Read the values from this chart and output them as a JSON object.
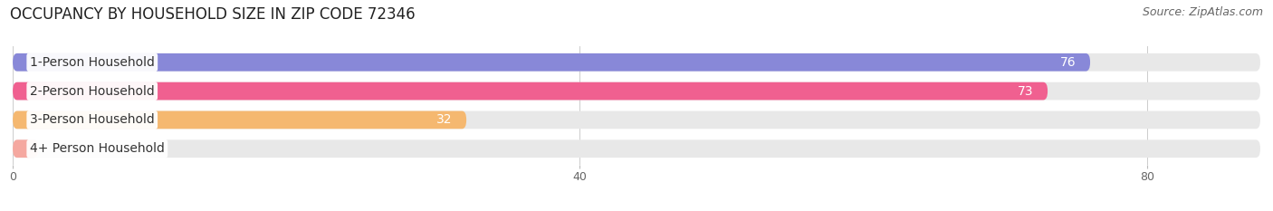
{
  "title": "OCCUPANCY BY HOUSEHOLD SIZE IN ZIP CODE 72346",
  "source": "Source: ZipAtlas.com",
  "categories": [
    "1-Person Household",
    "2-Person Household",
    "3-Person Household",
    "4+ Person Household"
  ],
  "values": [
    76,
    73,
    32,
    0
  ],
  "bar_colors": [
    "#8888d8",
    "#f06090",
    "#f5b870",
    "#f5a8a0"
  ],
  "track_color": "#e8e8e8",
  "background_color": "#ffffff",
  "plot_bg_color": "#ffffff",
  "xlim": [
    0,
    88
  ],
  "xticks": [
    0,
    40,
    80
  ],
  "value_label_colors_inside": "#ffffff",
  "value_label_color_outside": "#555555",
  "title_fontsize": 12,
  "source_fontsize": 9,
  "bar_label_fontsize": 10,
  "value_fontsize": 10,
  "bar_height": 0.62,
  "track_rounding": 0.31,
  "bar_rounding": 0.31
}
